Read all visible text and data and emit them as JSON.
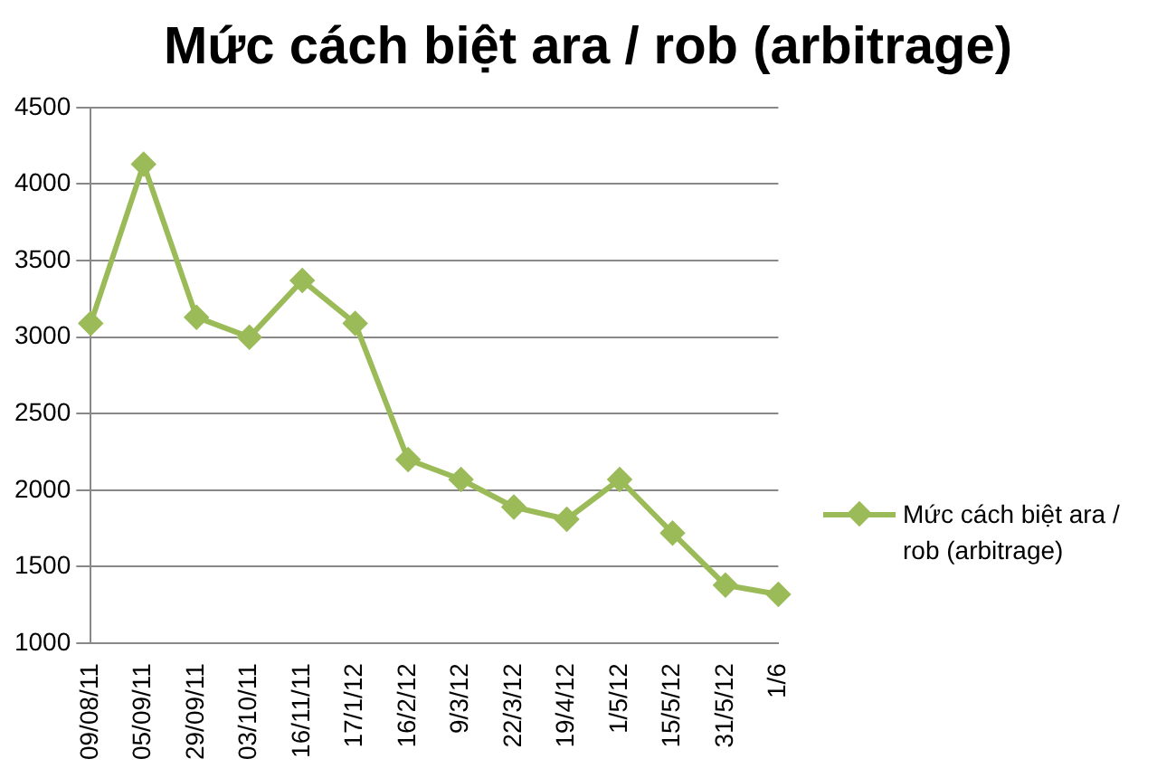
{
  "chart_data": {
    "type": "line",
    "title": "Mức cách biệt ara / rob (arbitrage)",
    "categories": [
      "09/08/11",
      "05/09/11",
      "29/09/11",
      "03/10/11",
      "16/11/11",
      "17/1/12",
      "16/2/12",
      "9/3/12",
      "22/3/12",
      "19/4/12",
      "1/5/12",
      "15/5/12",
      "31/5/12",
      "1/6"
    ],
    "series": [
      {
        "name": "Mức cách biệt ara / rob (arbitrage)",
        "color": "#9bbb59",
        "values": [
          3090,
          4130,
          3130,
          3000,
          3370,
          3090,
          2200,
          2070,
          1890,
          1810,
          2070,
          1720,
          1380,
          1320
        ]
      }
    ],
    "ylim": [
      1000,
      4500
    ],
    "yticks": [
      1000,
      1500,
      2000,
      2500,
      3000,
      3500,
      4000,
      4500
    ],
    "grid": "y",
    "legend": "right",
    "marker": "diamond",
    "line_style": "solid"
  }
}
